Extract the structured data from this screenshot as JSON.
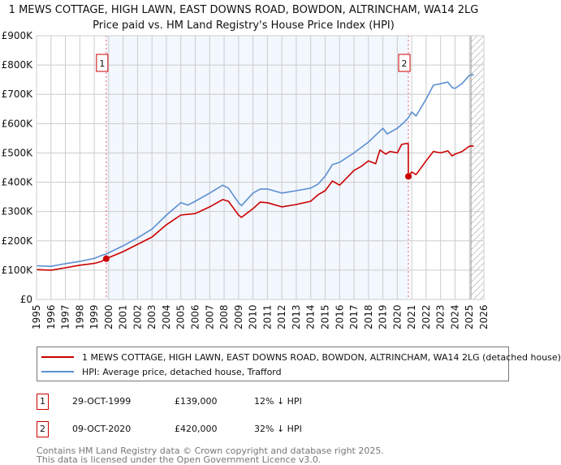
{
  "title": "1 MEWS COTTAGE, HIGH LAWN, EAST DOWNS ROAD, BOWDON, ALTRINCHAM, WA14 2LG",
  "subtitle": "Price paid vs. HM Land Registry's House Price Index (HPI)",
  "colors": {
    "property": "#cc0000",
    "hpi": "#5b8fd0",
    "shade": "#f3f7fe",
    "grid": "#cccccc"
  },
  "chart_data": {
    "type": "line",
    "title": "Price paid vs. HM Land Registry's House Price Index (HPI)",
    "xlim": [
      1995,
      2026
    ],
    "ylim": [
      0,
      900000
    ],
    "grid": true,
    "legend": "below",
    "yticks": [
      {
        "v": 0,
        "label": "£0"
      },
      {
        "v": 100000,
        "label": "£100K"
      },
      {
        "v": 200000,
        "label": "£200K"
      },
      {
        "v": 300000,
        "label": "£300K"
      },
      {
        "v": 400000,
        "label": "£400K"
      },
      {
        "v": 500000,
        "label": "£500K"
      },
      {
        "v": 600000,
        "label": "£600K"
      },
      {
        "v": 700000,
        "label": "£700K"
      },
      {
        "v": 800000,
        "label": "£800K"
      },
      {
        "v": 900000,
        "label": "£900K"
      }
    ],
    "xticks": [
      "1995",
      "1996",
      "1997",
      "1998",
      "1999",
      "2000",
      "2001",
      "2002",
      "2003",
      "2004",
      "2005",
      "2006",
      "2007",
      "2008",
      "2009",
      "2010",
      "2011",
      "2012",
      "2013",
      "2014",
      "2015",
      "2016",
      "2017",
      "2018",
      "2019",
      "2020",
      "2021",
      "2022",
      "2023",
      "2024",
      "2025",
      "2026"
    ],
    "shaded_period": [
      1999.83,
      2020.77
    ],
    "forecast_hatch_from": 2025.1,
    "series": [
      {
        "name": "HPI: Average price, detached house, Trafford",
        "color": "#5b8fd0",
        "points": [
          [
            1995,
            115000
          ],
          [
            1996,
            113000
          ],
          [
            1997,
            122000
          ],
          [
            1998,
            130000
          ],
          [
            1999,
            140000
          ],
          [
            1999.5,
            150000
          ],
          [
            1999.83,
            155000
          ],
          [
            2001,
            183000
          ],
          [
            2002,
            210000
          ],
          [
            2003,
            240000
          ],
          [
            2004,
            288000
          ],
          [
            2005,
            330000
          ],
          [
            2005.5,
            322000
          ],
          [
            2006,
            335000
          ],
          [
            2007,
            363000
          ],
          [
            2007.9,
            390000
          ],
          [
            2008.3,
            380000
          ],
          [
            2009,
            330000
          ],
          [
            2009.2,
            320000
          ],
          [
            2010,
            363000
          ],
          [
            2010.5,
            377000
          ],
          [
            2011,
            377000
          ],
          [
            2012,
            363000
          ],
          [
            2013,
            371000
          ],
          [
            2014,
            380000
          ],
          [
            2014.5,
            393000
          ],
          [
            2015,
            421000
          ],
          [
            2015.5,
            460000
          ],
          [
            2016,
            468000
          ],
          [
            2017,
            500000
          ],
          [
            2018,
            537000
          ],
          [
            2019,
            584000
          ],
          [
            2019.3,
            565000
          ],
          [
            2020,
            584000
          ],
          [
            2020.5,
            606000
          ],
          [
            2020.77,
            620000
          ],
          [
            2021,
            640000
          ],
          [
            2021.3,
            626000
          ],
          [
            2022,
            684000
          ],
          [
            2022.5,
            731000
          ],
          [
            2023,
            736000
          ],
          [
            2023.5,
            742000
          ],
          [
            2023.8,
            723000
          ],
          [
            2024,
            720000
          ],
          [
            2024.5,
            737000
          ],
          [
            2025,
            765000
          ],
          [
            2025.3,
            767000
          ]
        ]
      },
      {
        "name": "1 MEWS COTTAGE, HIGH LAWN, EAST DOWNS ROAD, BOWDON, ALTRINCHAM, WA14 2LG (detached house)",
        "color": "#cc0000",
        "points": [
          [
            1995,
            102000
          ],
          [
            1996,
            100000
          ],
          [
            1997,
            108000
          ],
          [
            1998,
            117000
          ],
          [
            1999,
            123000
          ],
          [
            1999.5,
            130000
          ],
          [
            1999.83,
            139000
          ],
          [
            2001,
            163000
          ],
          [
            2002,
            188000
          ],
          [
            2003,
            213000
          ],
          [
            2004,
            255000
          ],
          [
            2005,
            288000
          ],
          [
            2006,
            293000
          ],
          [
            2007,
            316000
          ],
          [
            2007.9,
            341000
          ],
          [
            2008.3,
            335000
          ],
          [
            2009,
            288000
          ],
          [
            2009.2,
            280000
          ],
          [
            2010,
            310000
          ],
          [
            2010.5,
            332000
          ],
          [
            2011,
            330000
          ],
          [
            2012,
            316000
          ],
          [
            2013,
            324000
          ],
          [
            2014,
            335000
          ],
          [
            2014.5,
            357000
          ],
          [
            2015,
            371000
          ],
          [
            2015.5,
            404000
          ],
          [
            2016,
            390000
          ],
          [
            2017,
            440000
          ],
          [
            2017.5,
            454000
          ],
          [
            2018,
            473000
          ],
          [
            2018.5,
            463000
          ],
          [
            2018.8,
            510000
          ],
          [
            2019.2,
            496000
          ],
          [
            2019.5,
            505000
          ],
          [
            2020,
            500000
          ],
          [
            2020.3,
            529000
          ],
          [
            2020.6,
            532000
          ],
          [
            2020.76,
            532000
          ],
          [
            2020.77,
            420000
          ],
          [
            2021,
            435000
          ],
          [
            2021.3,
            426000
          ],
          [
            2022,
            473000
          ],
          [
            2022.5,
            505000
          ],
          [
            2023,
            500000
          ],
          [
            2023.5,
            507000
          ],
          [
            2023.8,
            490000
          ],
          [
            2024,
            496000
          ],
          [
            2024.5,
            505000
          ],
          [
            2025,
            523000
          ],
          [
            2025.3,
            523000
          ]
        ]
      }
    ],
    "sales": [
      {
        "id": "1",
        "year": 1999.83,
        "value": 139000,
        "date": "29-OCT-1999",
        "price": "£139,000",
        "hpi_diff": "12% ↓ HPI"
      },
      {
        "id": "2",
        "year": 2020.77,
        "value": 420000,
        "date": "09-OCT-2020",
        "price": "£420,000",
        "hpi_diff": "32% ↓ HPI"
      }
    ]
  },
  "legend": {
    "property": "1 MEWS COTTAGE, HIGH LAWN, EAST DOWNS ROAD, BOWDON, ALTRINCHAM, WA14 2LG (detached house)",
    "hpi": "HPI: Average price, detached house, Trafford"
  },
  "footer": {
    "line1": "Contains HM Land Registry data © Crown copyright and database right 2025.",
    "line2": "This data is licensed under the Open Government Licence v3.0."
  }
}
